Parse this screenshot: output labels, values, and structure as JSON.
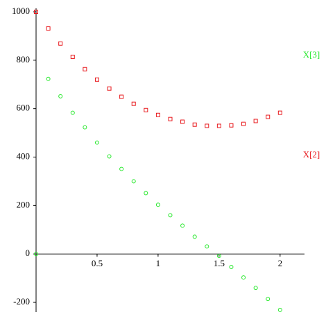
{
  "chart_data": {
    "type": "scatter",
    "x": [
      0,
      0.1,
      0.2,
      0.3,
      0.4,
      0.5,
      0.6,
      0.7,
      0.8,
      0.9,
      1.0,
      1.1,
      1.2,
      1.3,
      1.4,
      1.5,
      1.6,
      1.7,
      1.8,
      1.9,
      2.0
    ],
    "series": [
      {
        "name": "X[2]",
        "color": "#e8171b",
        "marker": "square",
        "values": [
          1000,
          931,
          869,
          814,
          763,
          720,
          683,
          649,
          620,
          594,
          574,
          557,
          546,
          534,
          529,
          529,
          531,
          537,
          549,
          566,
          583
        ]
      },
      {
        "name": "X[3]",
        "color": "#25e82a",
        "marker": "circle",
        "values": [
          0,
          723,
          651,
          583,
          523,
          460,
          403,
          351,
          300,
          251,
          203,
          160,
          117,
          71,
          31,
          -8,
          -54,
          -97,
          -140,
          -186,
          -231
        ]
      }
    ],
    "xlim": [
      0,
      2.2
    ],
    "ylim": [
      -240,
      1000
    ],
    "xticks": [
      0.5,
      1,
      1.5,
      2
    ],
    "yticks": [
      -200,
      0,
      200,
      400,
      600,
      800,
      1000
    ]
  }
}
